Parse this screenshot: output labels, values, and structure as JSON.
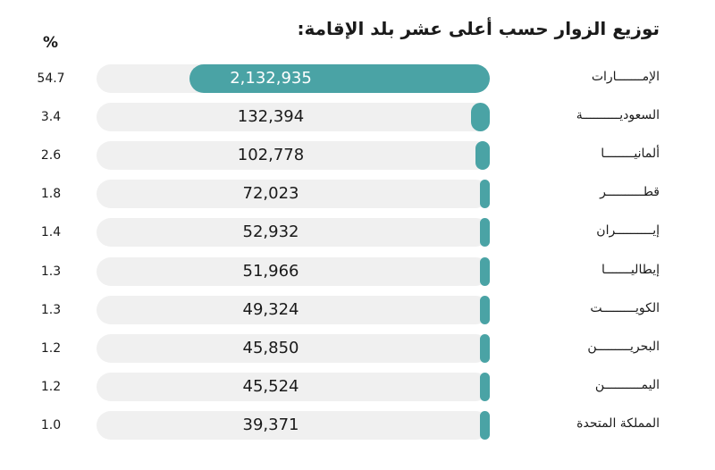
{
  "chart_data": {
    "type": "bar",
    "orientation": "horizontal",
    "title": "توزيع الزوار حسب أعلى عشر بلد الإقامة:",
    "percent_header": "%",
    "categories": [
      "الإمـــــــارات",
      "السعوديــــــــــة",
      "ألمانيــــــــا",
      "قطــــــــــر",
      "إيــــــــــران",
      "إيطاليـــــــا",
      "الكويـــــــــت",
      "البحريـــــــــن",
      "اليمــــــــــن",
      "المملكة المتحدة"
    ],
    "values": [
      2132935,
      132394,
      102778,
      72023,
      52932,
      51966,
      49324,
      45850,
      45524,
      39371
    ],
    "value_labels": [
      "2,132,935",
      "132,394",
      "102,778",
      "72,023",
      "52,932",
      "51,966",
      "49,324",
      "45,850",
      "45,524",
      "39,371"
    ],
    "percents": [
      "54.7",
      "3.4",
      "2.6",
      "1.8",
      "1.4",
      "1.3",
      "1.3",
      "1.2",
      "1.2",
      "1.0"
    ],
    "colors": {
      "bar": "#4aa3a5",
      "track": "#f0f0f0"
    }
  }
}
